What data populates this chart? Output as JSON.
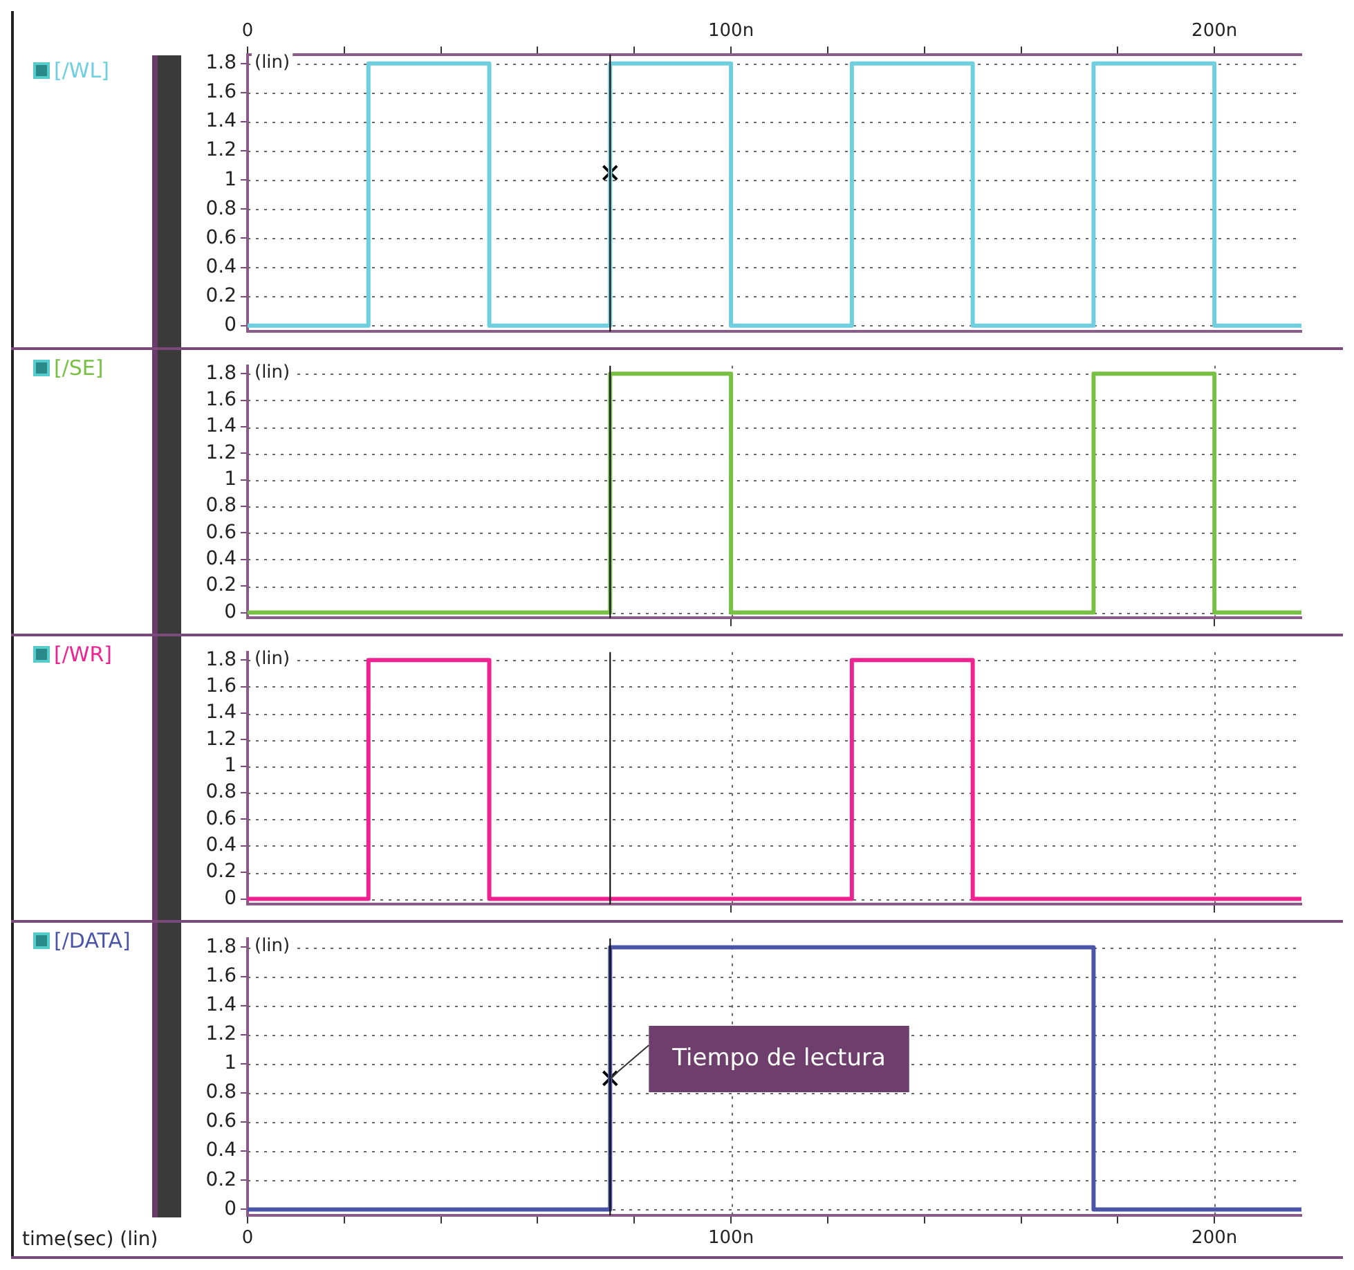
{
  "chart_data": [
    {
      "type": "step",
      "ylabel": "(lin)",
      "legend": "left",
      "grid": "y",
      "tick_labels": "y",
      "xlim": [
        0,
        218
      ],
      "ylim": [
        -0.04,
        1.86
      ],
      "x2lim": [
        0,
        218
      ],
      "x2ticks": [
        0,
        {
          "value": 20,
          "label": null
        },
        {
          "value": 40,
          "label": null
        },
        {
          "value": 60,
          "label": null
        },
        {
          "value": 80,
          "label": null
        },
        {
          "value": 100,
          "label": "100n"
        },
        {
          "value": 120,
          "label": null
        },
        {
          "value": 140,
          "label": null
        },
        {
          "value": 160,
          "label": null
        },
        {
          "value": 180,
          "label": null
        },
        {
          "value": 200,
          "label": "200n"
        }
      ],
      "yticks": [
        0,
        0.2,
        0.4,
        0.6,
        0.8,
        1,
        1.2,
        1.4,
        1.6,
        1.8
      ],
      "ref_lines": [
        {
          "axis": "x",
          "value": 75,
          "color": "#000000"
        }
      ],
      "series": [
        {
          "name": "[/WL]",
          "color": "#6fcfdf",
          "x": [
            0,
            25,
            50,
            75,
            100,
            125,
            150,
            175,
            200,
            218
          ],
          "values": [
            0,
            1.8,
            0,
            1.8,
            0,
            1.8,
            0,
            1.8,
            0,
            0
          ]
        },
        {
          "type": "scatter",
          "marker": "cross",
          "color": "#000000",
          "x": [
            75
          ],
          "values": [
            1.05
          ]
        }
      ]
    },
    {
      "type": "step",
      "ylabel": "(lin)",
      "legend": "left",
      "grid": true,
      "tick_labels": "y",
      "xlim": [
        0,
        218
      ],
      "ylim": [
        -0.04,
        1.86
      ],
      "xticks": [
        100,
        200
      ],
      "yticks": [
        0,
        0.2,
        0.4,
        0.6,
        0.8,
        1,
        1.2,
        1.4,
        1.6,
        1.8
      ],
      "ref_lines": [
        {
          "axis": "x",
          "value": 75,
          "color": "#000000"
        }
      ],
      "series": [
        {
          "name": "[/SE]",
          "color": "#77c043",
          "x": [
            0,
            75,
            100,
            175,
            200,
            218
          ],
          "values": [
            0,
            1.8,
            0,
            1.8,
            0,
            0
          ]
        }
      ]
    },
    {
      "type": "step",
      "ylabel": "(lin)",
      "legend": "left",
      "grid": true,
      "tick_labels": "y",
      "xlim": [
        0,
        218
      ],
      "ylim": [
        -0.04,
        1.86
      ],
      "xticks": [
        100,
        200
      ],
      "yticks": [
        0,
        0.2,
        0.4,
        0.6,
        0.8,
        1,
        1.2,
        1.4,
        1.6,
        1.8
      ],
      "ref_lines": [
        {
          "axis": "x",
          "value": 75,
          "color": "#000000"
        }
      ],
      "series": [
        {
          "name": "[/WR]",
          "color": "#ee2290",
          "x": [
            0,
            25,
            50,
            125,
            150,
            218
          ],
          "values": [
            0,
            1.8,
            0,
            1.8,
            0,
            0
          ]
        }
      ]
    },
    {
      "type": "step",
      "ylabel": "(lin)",
      "xlabel": "time(sec) (lin)",
      "legend": "left",
      "grid": true,
      "xlim": [
        0,
        218
      ],
      "ylim": [
        -0.04,
        1.86
      ],
      "xticks": [
        0,
        {
          "value": 20,
          "label": null
        },
        {
          "value": 40,
          "label": null
        },
        {
          "value": 60,
          "label": null
        },
        {
          "value": 80,
          "label": null
        },
        {
          "value": 100,
          "label": "100n"
        },
        {
          "value": 120,
          "label": null
        },
        {
          "value": 140,
          "label": null
        },
        {
          "value": 160,
          "label": null
        },
        {
          "value": 180,
          "label": null
        },
        {
          "value": 200,
          "label": "200n"
        }
      ],
      "yticks": [
        0,
        0.2,
        0.4,
        0.6,
        0.8,
        1,
        1.2,
        1.4,
        1.6,
        1.8
      ],
      "ref_lines": [
        {
          "axis": "x",
          "value": 75,
          "color": "#000000"
        }
      ],
      "annotations": [
        {
          "text": "Tiempo de lectura",
          "x": 75,
          "y": 0.9
        }
      ],
      "series": [
        {
          "name": "[/DATA]",
          "color": "#4b55a8",
          "x": [
            0,
            75,
            175,
            218
          ],
          "values": [
            0,
            1.8,
            0,
            0
          ]
        },
        {
          "type": "scatter",
          "marker": "cross",
          "color": "#000000",
          "x": [
            75
          ],
          "values": [
            0.9
          ]
        }
      ]
    }
  ]
}
